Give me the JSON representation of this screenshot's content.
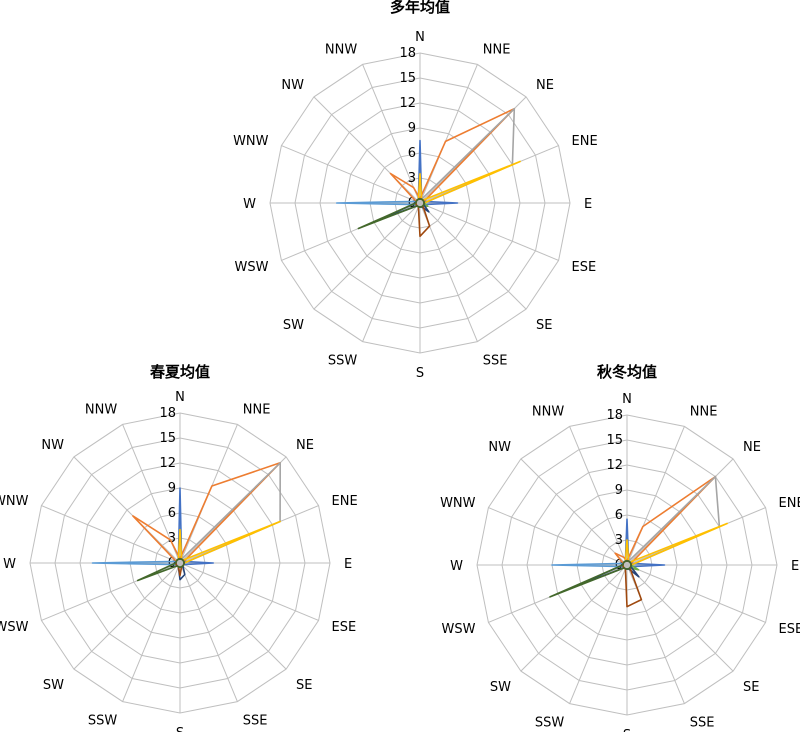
{
  "directions": [
    "N",
    "NNE",
    "NE",
    "ENE",
    "E",
    "ESE",
    "SE",
    "SSE",
    "S",
    "SSW",
    "SW",
    "WSW",
    "W",
    "WNW",
    "NW",
    "NNW"
  ],
  "ticks": [
    "0",
    "3",
    "6",
    "9",
    "12",
    "15",
    "18"
  ],
  "colors": [
    "#4472C4",
    "#ED7D31",
    "#A5A5A5",
    "#FFC000",
    "#5B9BD5",
    "#70AD47",
    "#264478",
    "#9E480E",
    "#636363",
    "#997300",
    "#255E91",
    "#43682B"
  ],
  "chart_data": [
    {
      "type": "radar",
      "title": "多年均值",
      "categories": [
        "N",
        "NNE",
        "NE",
        "ENE",
        "E",
        "ESE",
        "SE",
        "SSE",
        "S",
        "SSW",
        "SW",
        "WSW",
        "W",
        "WNW",
        "NW",
        "NNW"
      ],
      "rmax": 18,
      "ticks": [
        0,
        3,
        6,
        9,
        12,
        15,
        18
      ],
      "grid": true,
      "series": [
        {
          "color": "#4472C4",
          "values": [
            7.5,
            0.5,
            0.5,
            0.5,
            4.5,
            0.5,
            0.5,
            0.5,
            0.5,
            0.5,
            0.5,
            0.5,
            0.5,
            0.5,
            0.5,
            0.5
          ]
        },
        {
          "color": "#ED7D31",
          "values": [
            0.5,
            8,
            16,
            0.5,
            0.5,
            0.5,
            0.5,
            0.5,
            0.5,
            0.5,
            0.5,
            0.5,
            0.5,
            0.5,
            5,
            2
          ]
        },
        {
          "color": "#A5A5A5",
          "values": [
            0.5,
            0.5,
            16,
            12,
            0.5,
            0.5,
            0.5,
            0.5,
            0.5,
            0.5,
            0.5,
            0.5,
            0.5,
            0.5,
            0.5,
            0.5
          ]
        },
        {
          "color": "#FFC000",
          "values": [
            3.5,
            0.5,
            0.5,
            13,
            0.5,
            0.5,
            0.5,
            0.5,
            0.5,
            0.5,
            0.5,
            0.5,
            0.5,
            0.5,
            0.5,
            0.5
          ]
        },
        {
          "color": "#5B9BD5",
          "values": [
            0.5,
            0.5,
            0.5,
            0.5,
            0.5,
            0.5,
            0.5,
            0.5,
            0.5,
            0.5,
            0.5,
            0.5,
            10,
            0.5,
            0.5,
            0.5
          ]
        },
        {
          "color": "#70AD47",
          "values": [
            0.5,
            0.5,
            0.5,
            0.5,
            0.5,
            1,
            0.5,
            0.5,
            0.5,
            0.5,
            0.5,
            0.5,
            0.5,
            0.5,
            0.5,
            0.5
          ]
        },
        {
          "color": "#264478",
          "values": [
            0.5,
            0.5,
            0.5,
            0.5,
            0.5,
            0.5,
            1.5,
            0.5,
            0.5,
            0.5,
            0.5,
            5.5,
            0.5,
            0.5,
            0.5,
            0.5
          ]
        },
        {
          "color": "#9E480E",
          "values": [
            0.5,
            0.5,
            0.5,
            0.5,
            0.5,
            0.5,
            0.5,
            3,
            4,
            0.5,
            0.5,
            0.5,
            0.5,
            0.5,
            0.5,
            0.5
          ]
        },
        {
          "color": "#43682B",
          "values": [
            0.5,
            0.5,
            0.5,
            0.5,
            0.5,
            0.5,
            0.5,
            0.5,
            0.5,
            0.5,
            0.5,
            8,
            0.5,
            0.5,
            0.5,
            0.5
          ]
        }
      ]
    },
    {
      "type": "radar",
      "title": "春夏均值",
      "categories": [
        "N",
        "NNE",
        "NE",
        "ENE",
        "E",
        "ESE",
        "SE",
        "SSE",
        "S",
        "SSW",
        "SW",
        "WSW",
        "W",
        "WNW",
        "NW",
        "NNW"
      ],
      "rmax": 18,
      "ticks": [
        0,
        3,
        6,
        9,
        12,
        15,
        18
      ],
      "grid": true,
      "series": [
        {
          "color": "#4472C4",
          "values": [
            9,
            0.5,
            0.5,
            0.5,
            4,
            0.5,
            0.5,
            0.5,
            0.5,
            0.5,
            0.5,
            0.5,
            0.5,
            0.5,
            0.5,
            0.5
          ]
        },
        {
          "color": "#ED7D31",
          "values": [
            0.5,
            10,
            17,
            0.5,
            0.5,
            0.5,
            0.5,
            0.5,
            0.5,
            0.5,
            0.5,
            0.5,
            0.5,
            0.5,
            8,
            3
          ]
        },
        {
          "color": "#A5A5A5",
          "values": [
            0.5,
            0.5,
            17,
            13,
            0.5,
            0.5,
            0.5,
            0.5,
            0.5,
            0.5,
            0.5,
            0.5,
            0.5,
            0.5,
            0.5,
            0.5
          ]
        },
        {
          "color": "#FFC000",
          "values": [
            4,
            0.5,
            0.5,
            13,
            0.5,
            0.5,
            0.5,
            0.5,
            0.5,
            0.5,
            0.5,
            0.5,
            0.5,
            0.5,
            0.5,
            0.5
          ]
        },
        {
          "color": "#5B9BD5",
          "values": [
            0.5,
            0.5,
            0.5,
            0.5,
            0.5,
            0.5,
            0.5,
            0.5,
            0.5,
            0.5,
            0.5,
            0.5,
            10.5,
            0.5,
            0.5,
            0.5
          ]
        },
        {
          "color": "#264478",
          "values": [
            0.5,
            0.5,
            0.5,
            0.5,
            0.5,
            0.5,
            0.5,
            1.5,
            2,
            0.5,
            0.5,
            0.5,
            0.5,
            0.5,
            0.5,
            0.5
          ]
        },
        {
          "color": "#9E480E",
          "values": [
            0.5,
            0.5,
            0.5,
            0.5,
            0.5,
            0.5,
            0.5,
            0.5,
            1.5,
            0.5,
            0.5,
            0.5,
            0.5,
            0.5,
            0.5,
            0.5
          ]
        },
        {
          "color": "#43682B",
          "values": [
            0.5,
            0.5,
            0.5,
            0.5,
            0.5,
            0.5,
            0.5,
            0.5,
            0.5,
            0.5,
            0.5,
            5.5,
            0.5,
            0.5,
            0.5,
            0.5
          ]
        }
      ]
    },
    {
      "type": "radar",
      "title": "秋冬均值",
      "categories": [
        "N",
        "NNE",
        "NE",
        "ENE",
        "E",
        "ESE",
        "SE",
        "SSE",
        "S",
        "SSW",
        "SW",
        "WSW",
        "W",
        "WNW",
        "NW",
        "NNW"
      ],
      "rmax": 18,
      "ticks": [
        0,
        3,
        6,
        9,
        12,
        15,
        18
      ],
      "grid": true,
      "series": [
        {
          "color": "#4472C4",
          "values": [
            5.5,
            0.5,
            0.5,
            0.5,
            4.5,
            0.5,
            0.5,
            0.5,
            0.5,
            0.5,
            0.5,
            0.5,
            0.5,
            0.5,
            0.5,
            0.5
          ]
        },
        {
          "color": "#ED7D31",
          "values": [
            0.5,
            5,
            15,
            0.5,
            0.5,
            0.5,
            0.5,
            0.5,
            0.5,
            0.5,
            0.5,
            0.5,
            0.5,
            0.5,
            2,
            1
          ]
        },
        {
          "color": "#A5A5A5",
          "values": [
            0.5,
            0.5,
            15,
            12,
            0.5,
            0.5,
            0.5,
            0.5,
            0.5,
            0.5,
            0.5,
            0.5,
            0.5,
            0.5,
            0.5,
            0.5
          ]
        },
        {
          "color": "#FFC000",
          "values": [
            3,
            0.5,
            0.5,
            13,
            0.5,
            0.5,
            0.5,
            0.5,
            0.5,
            0.5,
            0.5,
            0.5,
            0.5,
            0.5,
            0.5,
            0.5
          ]
        },
        {
          "color": "#5B9BD5",
          "values": [
            0.5,
            0.5,
            0.5,
            0.5,
            0.5,
            0.5,
            0.5,
            0.5,
            0.5,
            0.5,
            0.5,
            0.5,
            9,
            0.5,
            0.5,
            0.5
          ]
        },
        {
          "color": "#70AD47",
          "values": [
            0.5,
            0.5,
            0.5,
            0.5,
            0.5,
            1.5,
            0.5,
            0.5,
            0.5,
            0.5,
            0.5,
            0.5,
            0.5,
            0.5,
            0.5,
            0.5
          ]
        },
        {
          "color": "#264478",
          "values": [
            0.5,
            0.5,
            0.5,
            0.5,
            0.5,
            0.5,
            2,
            0.5,
            0.5,
            0.5,
            0.5,
            7,
            0.5,
            0.5,
            0.5,
            0.5
          ]
        },
        {
          "color": "#9E480E",
          "values": [
            0.5,
            0.5,
            0.5,
            0.5,
            0.5,
            0.5,
            0.5,
            4.5,
            5,
            0.5,
            0.5,
            0.5,
            0.5,
            0.5,
            0.5,
            0.5
          ]
        },
        {
          "color": "#43682B",
          "values": [
            0.5,
            0.5,
            0.5,
            0.5,
            0.5,
            0.5,
            0.5,
            0.5,
            0.5,
            0.5,
            0.5,
            10,
            0.5,
            0.5,
            0.5,
            0.5
          ]
        }
      ]
    }
  ]
}
